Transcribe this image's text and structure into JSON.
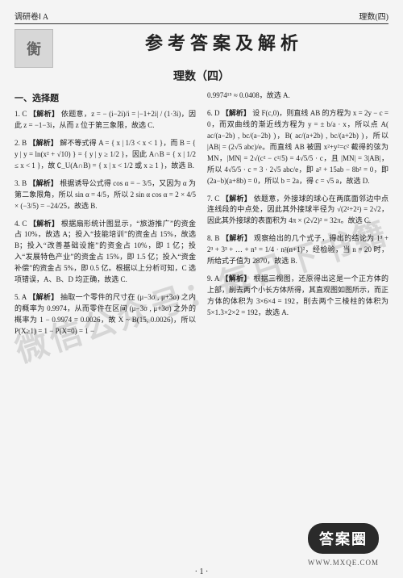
{
  "header": {
    "left": "调研卷Ⅰ A",
    "right": "理数(四)"
  },
  "logo_text": "衡",
  "title": "参考答案及解析",
  "subtitle": "理数（四）",
  "section_label": "一、选择题",
  "watermark": "微信公众号：每日下书籍",
  "stamp": "答案圈",
  "stamp_url": "WWW.MXQE.COM",
  "page_number": "· 1 ·",
  "style": {
    "page_bg": "#f4f4f4",
    "text_color": "#222222",
    "border_color": "#333333",
    "logo_bg": "#d7d7d7",
    "logo_border": "#bbbbbb",
    "watermark_color": "rgba(0,0,0,0.12)",
    "stamp_bg": "#2a2a2a",
    "stamp_fg": "#ffffff",
    "title_fontsize": 22,
    "subtitle_fontsize": 14,
    "body_fontsize": 9,
    "body_lineheight": 1.55,
    "watermark_fontsize": 40,
    "watermark_rotate_deg": -18
  },
  "left_items": [
    {
      "n": "1. C",
      "tag": "【解析】",
      "body": "依题意，z = − (i−2i)/i = |−1+2i| / (1·3i)，因此 z = −1−3i，从而 z 位于第三象限，故选 C."
    },
    {
      "n": "2. B",
      "tag": "【解析】",
      "body": "解不等式得 A = { x | 1/3 < x < 1 }，而 B = { y | y = ln(x² + √10) } = { y | y ≥ 1/2 }，因此 A∩B = { x | 1/2 ≤ x < 1 }，故 ∁_U(A∩B) = { x | x < 1/2 或 x ≥ 1 }，故选 B."
    },
    {
      "n": "3. B",
      "tag": "【解析】",
      "body": "根据诱导公式得 cos α = − 3/5，又因为 α 为第二象限角，所以 sin α = 4/5，所以 2 sin α cos α = 2 × 4/5 × (−3/5) = −24/25，故选 B."
    },
    {
      "n": "4. C",
      "tag": "【解析】",
      "body": "根据扇形统计图显示，“旅游推广”的资金占 10%，故选 A；投入“技能培训”的资金占 15%，故选 B；投入“改善基础设施”的资金占 10%，即 1 亿；投入“发展特色产业”的资金占 15%，即 1.5 亿；投入“资金补偿”的资金占 5%，即 0.5 亿。根据以上分析可知，C 选项错误，A、B、D 均正确，故选 C."
    },
    {
      "n": "5. A",
      "tag": "【解析】",
      "body": "抽取一个零件的尺寸在 (μ−3σ , μ+3σ) 之内的概率为 0.9974，从而零件在区间 (μ−3σ , μ+3σ) 之外的概率为 1 − 0.9974 = 0.0026，故 X ~ B(15, 0.0026)，所以 P(X≥1) = 1 − P(X=0) = 1 −"
    }
  ],
  "right_top": "0.9974¹⁵ ≈ 0.0408，故选 A.",
  "right_items": [
    {
      "n": "6. D",
      "tag": "【解析】",
      "body": "设 F(c,0)，则直线 AB 的方程为 x = 2y − c = 0，而双曲线的渐近线方程为 y = ± b/a · x，所以点 A( ac/(a−2b) , bc/(a−2b) )，B( ac/(a+2b) , bc/(a+2b) )，所以 |AB| = (2√5 abc)/e。而直线 AB 被圆 x²+y²=c² 截得的弦为 MN，|MN| = 2√(c² − c²/5) = 4√5/5 · c，且 |MN| = 3|AB|，所以 4√5/5 · c = 3 · 2√5 abc/e，即 a² + 15ab − 8b² = 0，即 (2a−b)(a+8b) = 0，所以 b = 2a，得 c = √5 a，故选 D."
    },
    {
      "n": "7. C",
      "tag": "【解析】",
      "body": "依题意，外接球的球心在两底面邻边中点连线段的中点处，因此其外接球半径为 √(2²+2²) = 2√2，因此其外接球的表面积为 4π × (2√2)² = 32π。故选 C."
    },
    {
      "n": "8. B",
      "tag": "【解析】",
      "body": "观察给出的几个式子，得出的结论为 1³ + 2³ + 3³ + … + n³ = 1/4 · n²(n+1)²，经检验，当 n = 20 时，所给式子值为 2870，故选 B."
    },
    {
      "n": "9. A",
      "tag": "【解析】",
      "body": "根据三视图，还原得出这是一个正方体的上部，削去两个小长方体所得，其直观图如图所示，而正方体的体积为 3×6×4 = 192，削去两个三棱柱的体积为 5×1.3×2×2 = 192，故选 A."
    }
  ]
}
